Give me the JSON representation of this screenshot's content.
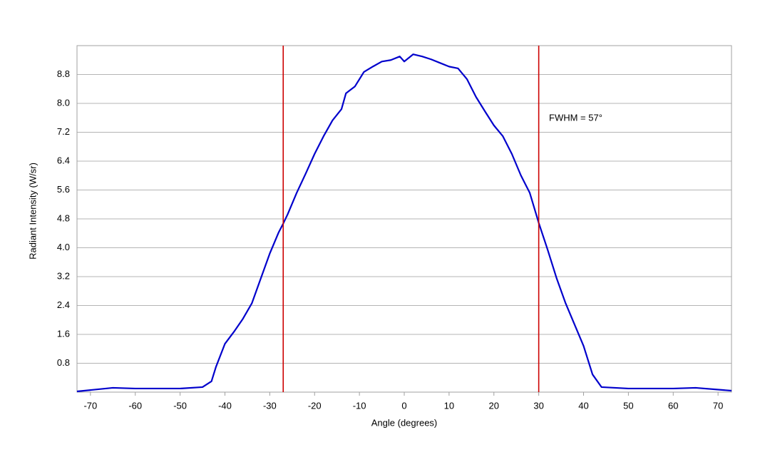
{
  "chart_data": {
    "type": "line",
    "x_label": "Angle (degrees)",
    "y_label": "Radiant Intensity (W/sr)",
    "annotation": "FWHM = 57°",
    "x": [
      -73,
      -65,
      -60,
      -50,
      -45,
      -43,
      -42,
      -40,
      -38,
      -36,
      -34,
      -32,
      -30,
      -28,
      -27,
      -26,
      -24,
      -22,
      -20,
      -18,
      -16,
      -14,
      -13,
      -11,
      -9,
      -7,
      -5,
      -3,
      -1,
      0,
      2,
      4,
      6,
      8,
      10,
      12,
      14,
      16,
      18,
      20,
      22,
      24,
      26,
      28,
      30,
      32,
      34,
      36,
      38,
      40,
      42,
      44,
      50,
      60,
      65,
      73
    ],
    "series": [
      {
        "name": "Radiant Intensity",
        "color": "#0000cc",
        "values": [
          0.02,
          0.12,
          0.1,
          0.1,
          0.14,
          0.3,
          0.7,
          1.34,
          1.67,
          2.03,
          2.46,
          3.15,
          3.84,
          4.43,
          4.67,
          4.93,
          5.52,
          6.05,
          6.6,
          7.09,
          7.53,
          7.84,
          8.28,
          8.47,
          8.87,
          9.02,
          9.16,
          9.2,
          9.3,
          9.16,
          9.36,
          9.3,
          9.22,
          9.12,
          9.02,
          8.97,
          8.67,
          8.18,
          7.78,
          7.39,
          7.09,
          6.6,
          6.01,
          5.52,
          4.69,
          3.94,
          3.15,
          2.46,
          1.87,
          1.28,
          0.49,
          0.14,
          0.1,
          0.1,
          0.12,
          0.04
        ]
      }
    ],
    "vlines": [
      -27,
      30
    ],
    "vline_color": "#cc0000",
    "xlim": [
      -73,
      73
    ],
    "ylim": [
      0,
      9.6
    ],
    "xticks": [
      -70,
      -60,
      -50,
      -40,
      -30,
      -20,
      -10,
      0,
      10,
      20,
      30,
      40,
      50,
      60,
      70
    ],
    "yticks": [
      0.8,
      1.6,
      2.4,
      3.2,
      {
        "value": 4,
        "label": "4.0"
      },
      4.8,
      5.6,
      6.4,
      7.2,
      {
        "value": 8,
        "label": "8.0"
      },
      8.8
    ],
    "grid": true
  }
}
